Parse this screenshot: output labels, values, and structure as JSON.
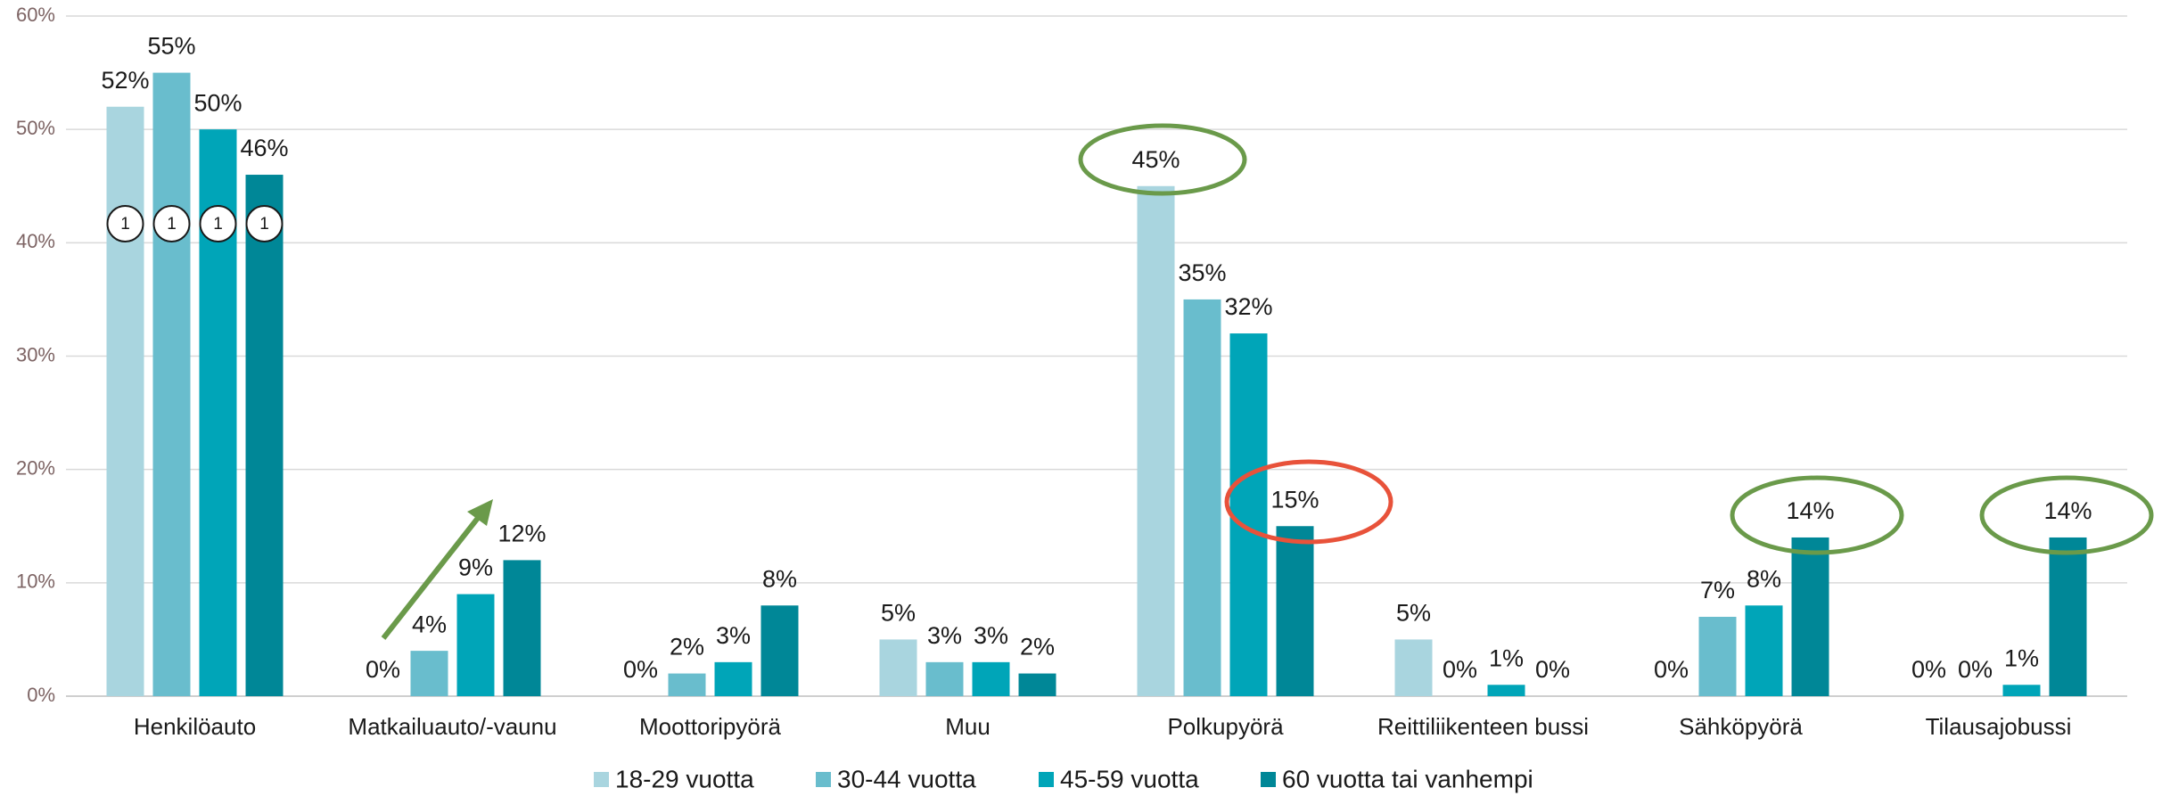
{
  "chart_data": {
    "type": "bar",
    "categories": [
      "Henkilöauto",
      "Matkailuauto/-vaunu",
      "Moottoripyörä",
      "Muu",
      "Polkupyörä",
      "Reittiliikenteen bussi",
      "Sähköpyörä",
      "Tilausajobussi"
    ],
    "series": [
      {
        "name": "18-29 vuotta",
        "color": "#a9d5df",
        "values": [
          52,
          0,
          0,
          5,
          45,
          5,
          0,
          0
        ],
        "value_labels": [
          "52%",
          "0%",
          "0%",
          "5%",
          "45%",
          "5%",
          "0%",
          "0%"
        ]
      },
      {
        "name": "30-44 vuotta",
        "color": "#69bdcd",
        "values": [
          55,
          4,
          2,
          3,
          35,
          0,
          7,
          0
        ],
        "value_labels": [
          "55%",
          "4%",
          "2%",
          "3%",
          "35%",
          "0%",
          "7%",
          "0%"
        ]
      },
      {
        "name": "45-59 vuotta",
        "color": "#00a5b8",
        "values": [
          50,
          9,
          3,
          3,
          32,
          1,
          8,
          1
        ],
        "value_labels": [
          "50%",
          "9%",
          "3%",
          "3%",
          "32%",
          "1%",
          "8%",
          "1%"
        ]
      },
      {
        "name": "60 vuotta tai vanhempi",
        "color": "#008797",
        "values": [
          46,
          12,
          8,
          2,
          15,
          0,
          14,
          14
        ],
        "value_labels": [
          "46%",
          "12%",
          "8%",
          "2%",
          "15%",
          "0%",
          "14%",
          "14%"
        ]
      }
    ],
    "ylim": [
      0,
      60
    ],
    "yticks": [
      {
        "value": 0,
        "label": "0%"
      },
      {
        "value": 10,
        "label": "10%"
      },
      {
        "value": 20,
        "label": "20%"
      },
      {
        "value": 30,
        "label": "30%"
      },
      {
        "value": 40,
        "label": "40%"
      },
      {
        "value": 50,
        "label": "50%"
      },
      {
        "value": 60,
        "label": "60%"
      }
    ],
    "grid": true,
    "legend": "bottom",
    "footnote_markers": [
      "1",
      "1",
      "1",
      "1"
    ]
  }
}
